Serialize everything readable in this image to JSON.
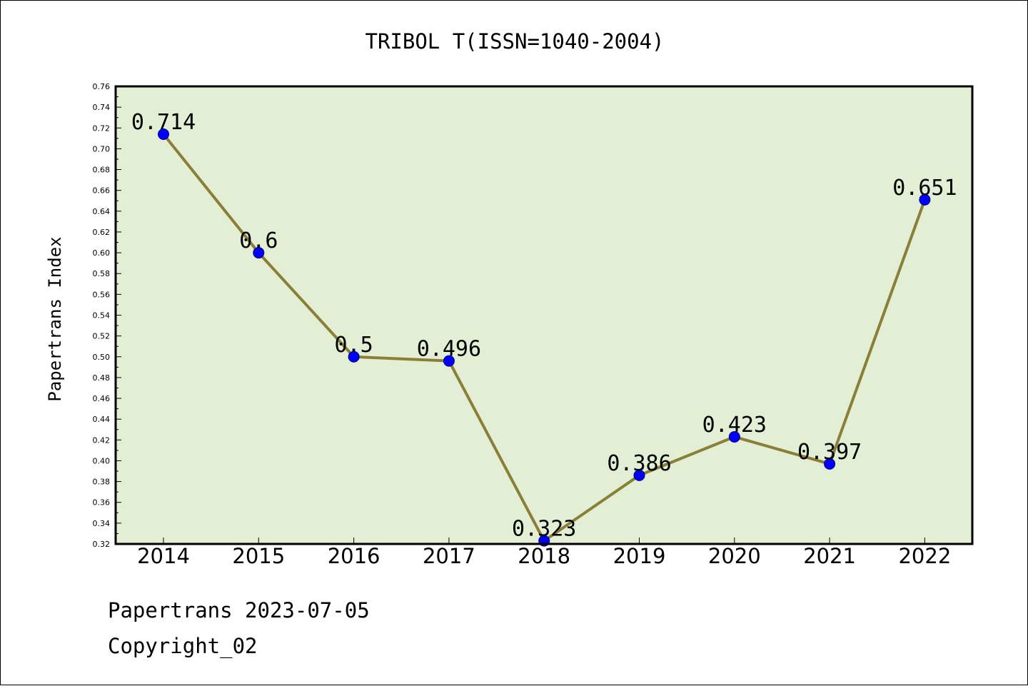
{
  "chart_data": {
    "type": "line",
    "title": "TRIBOL T(ISSN=1040-2004)",
    "xlabel": "",
    "ylabel": "Papertrans Index",
    "categories": [
      "2014",
      "2015",
      "2016",
      "2017",
      "2018",
      "2019",
      "2020",
      "2021",
      "2022"
    ],
    "values": [
      0.714,
      0.6,
      0.5,
      0.496,
      0.323,
      0.386,
      0.423,
      0.397,
      0.651
    ],
    "value_labels": [
      "0.714",
      "0.6",
      "0.5",
      "0.496",
      "0.323",
      "0.386",
      "0.423",
      "0.397",
      "0.651"
    ],
    "ylim": [
      0.32,
      0.76
    ],
    "yticks": [
      "0.32",
      "0.34",
      "0.36",
      "0.38",
      "0.40",
      "0.42",
      "0.44",
      "0.46",
      "0.48",
      "0.50",
      "0.52",
      "0.54",
      "0.56",
      "0.58",
      "0.60",
      "0.62",
      "0.64",
      "0.66",
      "0.68",
      "0.70",
      "0.72",
      "0.74",
      "0.76"
    ],
    "grid": false,
    "legend": "none",
    "colors": {
      "plot_background": "#e2efd5",
      "line": "#8b7f38",
      "marker": "#0000ff"
    }
  },
  "footer": {
    "line1": "Papertrans 2023-07-05",
    "line2": "Copyright_02"
  }
}
